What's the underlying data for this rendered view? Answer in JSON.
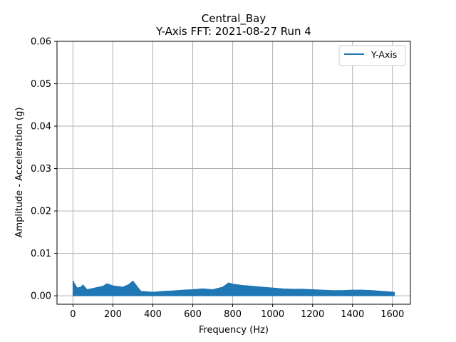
{
  "chart_data": {
    "type": "line",
    "title": "Central_Bay",
    "subtitle": "Y-Axis FFT: 2021-08-27 Run 4",
    "xlabel": "Frequency (Hz)",
    "ylabel": "Amplitude - Acceleration (g)",
    "xlim": [
      -80,
      1690
    ],
    "ylim": [
      -0.002,
      0.06
    ],
    "x_ticks": [
      0,
      200,
      400,
      600,
      800,
      1000,
      1200,
      1400,
      1600
    ],
    "y_ticks": [
      0.0,
      0.01,
      0.02,
      0.03,
      0.04,
      0.05,
      0.06
    ],
    "x_tick_labels": [
      "0",
      "200",
      "400",
      "600",
      "800",
      "1000",
      "1200",
      "1400",
      "1600"
    ],
    "y_tick_labels": [
      "0.00",
      "0.01",
      "0.02",
      "0.03",
      "0.04",
      "0.05",
      "0.06"
    ],
    "grid": true,
    "legend_position": "top-right",
    "series": [
      {
        "name": "Y-Axis",
        "color": "#1f77b4",
        "envelope": {
          "x": [
            0,
            5,
            20,
            40,
            50,
            70,
            100,
            150,
            170,
            200,
            250,
            280,
            300,
            320,
            340,
            400,
            450,
            500,
            550,
            600,
            650,
            700,
            750,
            780,
            800,
            850,
            900,
            950,
            1000,
            1050,
            1100,
            1150,
            1200,
            1250,
            1300,
            1350,
            1400,
            1450,
            1500,
            1550,
            1610
          ],
          "upper": [
            0.0035,
            0.003,
            0.0018,
            0.002,
            0.0025,
            0.0014,
            0.0017,
            0.0022,
            0.0028,
            0.0023,
            0.002,
            0.0026,
            0.0034,
            0.0022,
            0.001,
            0.0008,
            0.001,
            0.0011,
            0.0013,
            0.0014,
            0.0016,
            0.0014,
            0.002,
            0.003,
            0.0027,
            0.0024,
            0.0022,
            0.002,
            0.0018,
            0.0016,
            0.0015,
            0.0015,
            0.0014,
            0.0013,
            0.0012,
            0.0012,
            0.0013,
            0.0013,
            0.0012,
            0.001,
            0.0008
          ],
          "lower": [
            0.0,
            0.0,
            0.0,
            0.0,
            0.0,
            0.0,
            0.0,
            0.0,
            0.0,
            0.0,
            0.0,
            0.0,
            0.0,
            0.0,
            0.0,
            0.0,
            0.0,
            0.0,
            0.0,
            0.0,
            0.0,
            0.0,
            0.0,
            0.0,
            0.0,
            0.0,
            0.0,
            0.0,
            0.0,
            0.0,
            0.0,
            0.0,
            0.0,
            0.0,
            0.0,
            0.0,
            0.0,
            0.0,
            0.0,
            0.0,
            0.0
          ]
        }
      }
    ]
  }
}
